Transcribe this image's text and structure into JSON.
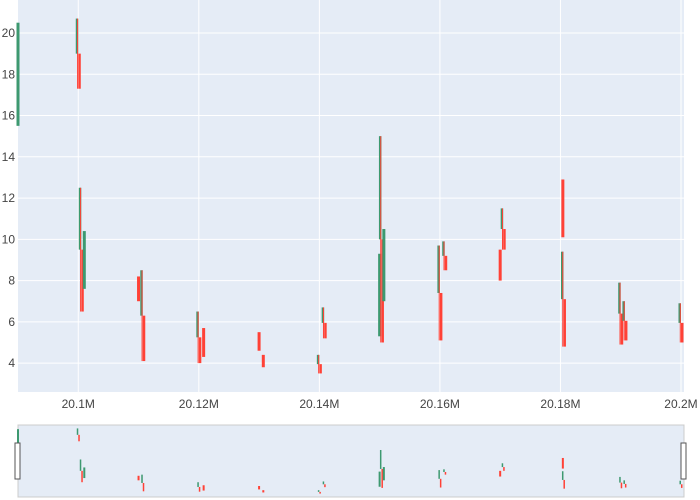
{
  "chart_data": {
    "type": "candlestick",
    "title": "",
    "xlabel": "",
    "ylabel": "",
    "xlim": [
      20090000,
      20200500
    ],
    "ylim": [
      2.6,
      21.6
    ],
    "x_ticks": [
      20100000,
      20120000,
      20140000,
      20160000,
      20180000,
      20200000
    ],
    "x_tick_labels": [
      "20.1M",
      "20.12M",
      "20.14M",
      "20.16M",
      "20.18M",
      "20.2M"
    ],
    "y_ticks": [
      4,
      6,
      8,
      10,
      12,
      14,
      16,
      18,
      20
    ],
    "y_tick_labels": [
      "4",
      "6",
      "8",
      "10",
      "12",
      "14",
      "16",
      "18",
      "20"
    ],
    "grid": true,
    "legend": "none",
    "rangeslider": true,
    "colors": {
      "increasing": "#3d9970",
      "decreasing": "#ff4136",
      "plot_bg": "#e5ecf6",
      "grid": "#ffffff"
    },
    "clusters": [
      {
        "x": 20090000,
        "low": 15.5,
        "high": 20.5,
        "dir": "up"
      },
      {
        "x": 20100000,
        "low": 17.3,
        "high": 20.7,
        "dir": "mixed"
      },
      {
        "x": 20100500,
        "low": 6.5,
        "high": 12.5,
        "dir": "mixed"
      },
      {
        "x": 20101000,
        "low": 7.6,
        "high": 10.4,
        "dir": "up"
      },
      {
        "x": 20110000,
        "low": 7.0,
        "high": 8.2,
        "dir": "down"
      },
      {
        "x": 20110700,
        "low": 4.1,
        "high": 8.5,
        "dir": "mixed"
      },
      {
        "x": 20120000,
        "low": 4.0,
        "high": 6.5,
        "dir": "mixed"
      },
      {
        "x": 20120800,
        "low": 4.3,
        "high": 5.7,
        "dir": "down"
      },
      {
        "x": 20130000,
        "low": 4.6,
        "high": 5.5,
        "dir": "down"
      },
      {
        "x": 20130700,
        "low": 3.8,
        "high": 4.4,
        "dir": "down"
      },
      {
        "x": 20140000,
        "low": 3.5,
        "high": 4.4,
        "dir": "mixed"
      },
      {
        "x": 20140800,
        "low": 5.2,
        "high": 6.7,
        "dir": "mixed"
      },
      {
        "x": 20150000,
        "low": 5.3,
        "high": 9.3,
        "dir": "up"
      },
      {
        "x": 20150300,
        "low": 5.0,
        "high": 15.0,
        "dir": "mixed"
      },
      {
        "x": 20150700,
        "low": 7.0,
        "high": 10.5,
        "dir": "up"
      },
      {
        "x": 20160000,
        "low": 5.1,
        "high": 9.7,
        "dir": "mixed"
      },
      {
        "x": 20160800,
        "low": 8.5,
        "high": 9.9,
        "dir": "mixed"
      },
      {
        "x": 20170000,
        "low": 8.0,
        "high": 9.5,
        "dir": "down"
      },
      {
        "x": 20170500,
        "low": 9.5,
        "high": 11.5,
        "dir": "mixed"
      },
      {
        "x": 20180400,
        "low": 10.1,
        "high": 12.9,
        "dir": "down"
      },
      {
        "x": 20180500,
        "low": 4.8,
        "high": 9.4,
        "dir": "mixed"
      },
      {
        "x": 20190000,
        "low": 4.9,
        "high": 7.9,
        "dir": "mixed"
      },
      {
        "x": 20190700,
        "low": 5.1,
        "high": 7.0,
        "dir": "mixed"
      },
      {
        "x": 20200000,
        "low": 5.0,
        "high": 6.9,
        "dir": "mixed"
      }
    ]
  }
}
